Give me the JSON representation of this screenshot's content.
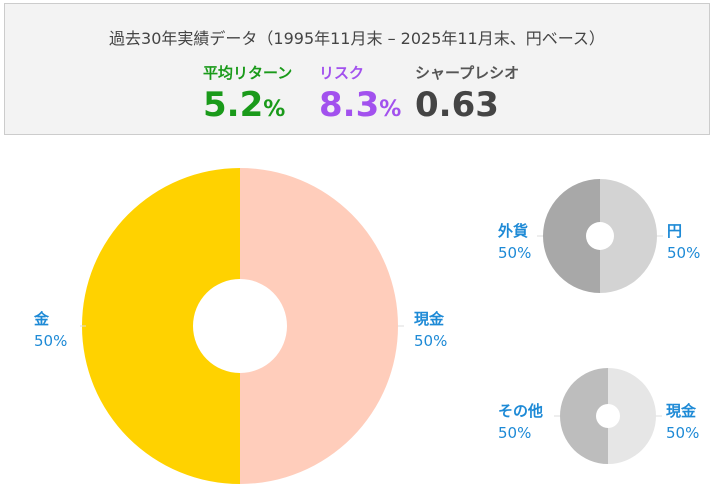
{
  "summary": {
    "title": "過去30年実績データ（1995年11月末 – 2025年11月末、円ベース）",
    "return_label": "平均リターン",
    "return_value": "5.2",
    "return_unit": "%",
    "risk_label": "リスク",
    "risk_value": "8.3",
    "risk_unit": "%",
    "sharpe_label": "シャープレシオ",
    "sharpe_value": "0.63"
  },
  "colors": {
    "return": "#1a9a1a",
    "risk": "#a251ee",
    "label": "#1e8ad6",
    "gold": "#ffd200",
    "cash_main": "#ffcdbb",
    "foreign": "#a8a8a8",
    "yen": "#d3d3d3",
    "other": "#bdbdbd",
    "cash_small": "#e6e6e6"
  },
  "chart_data": [
    {
      "type": "pie",
      "title": "",
      "slices": [
        {
          "label": "金",
          "value": 50,
          "value_label": "50%",
          "color": "#ffd200"
        },
        {
          "label": "現金",
          "value": 50,
          "value_label": "50%",
          "color": "#ffcdbb"
        }
      ]
    },
    {
      "type": "pie",
      "title": "",
      "slices": [
        {
          "label": "外貨",
          "value": 50,
          "value_label": "50%",
          "color": "#a8a8a8"
        },
        {
          "label": "円",
          "value": 50,
          "value_label": "50%",
          "color": "#d3d3d3"
        }
      ]
    },
    {
      "type": "pie",
      "title": "",
      "slices": [
        {
          "label": "その他",
          "value": 50,
          "value_label": "50%",
          "color": "#bdbdbd"
        },
        {
          "label": "現金",
          "value": 50,
          "value_label": "50%",
          "color": "#e6e6e6"
        }
      ]
    }
  ]
}
